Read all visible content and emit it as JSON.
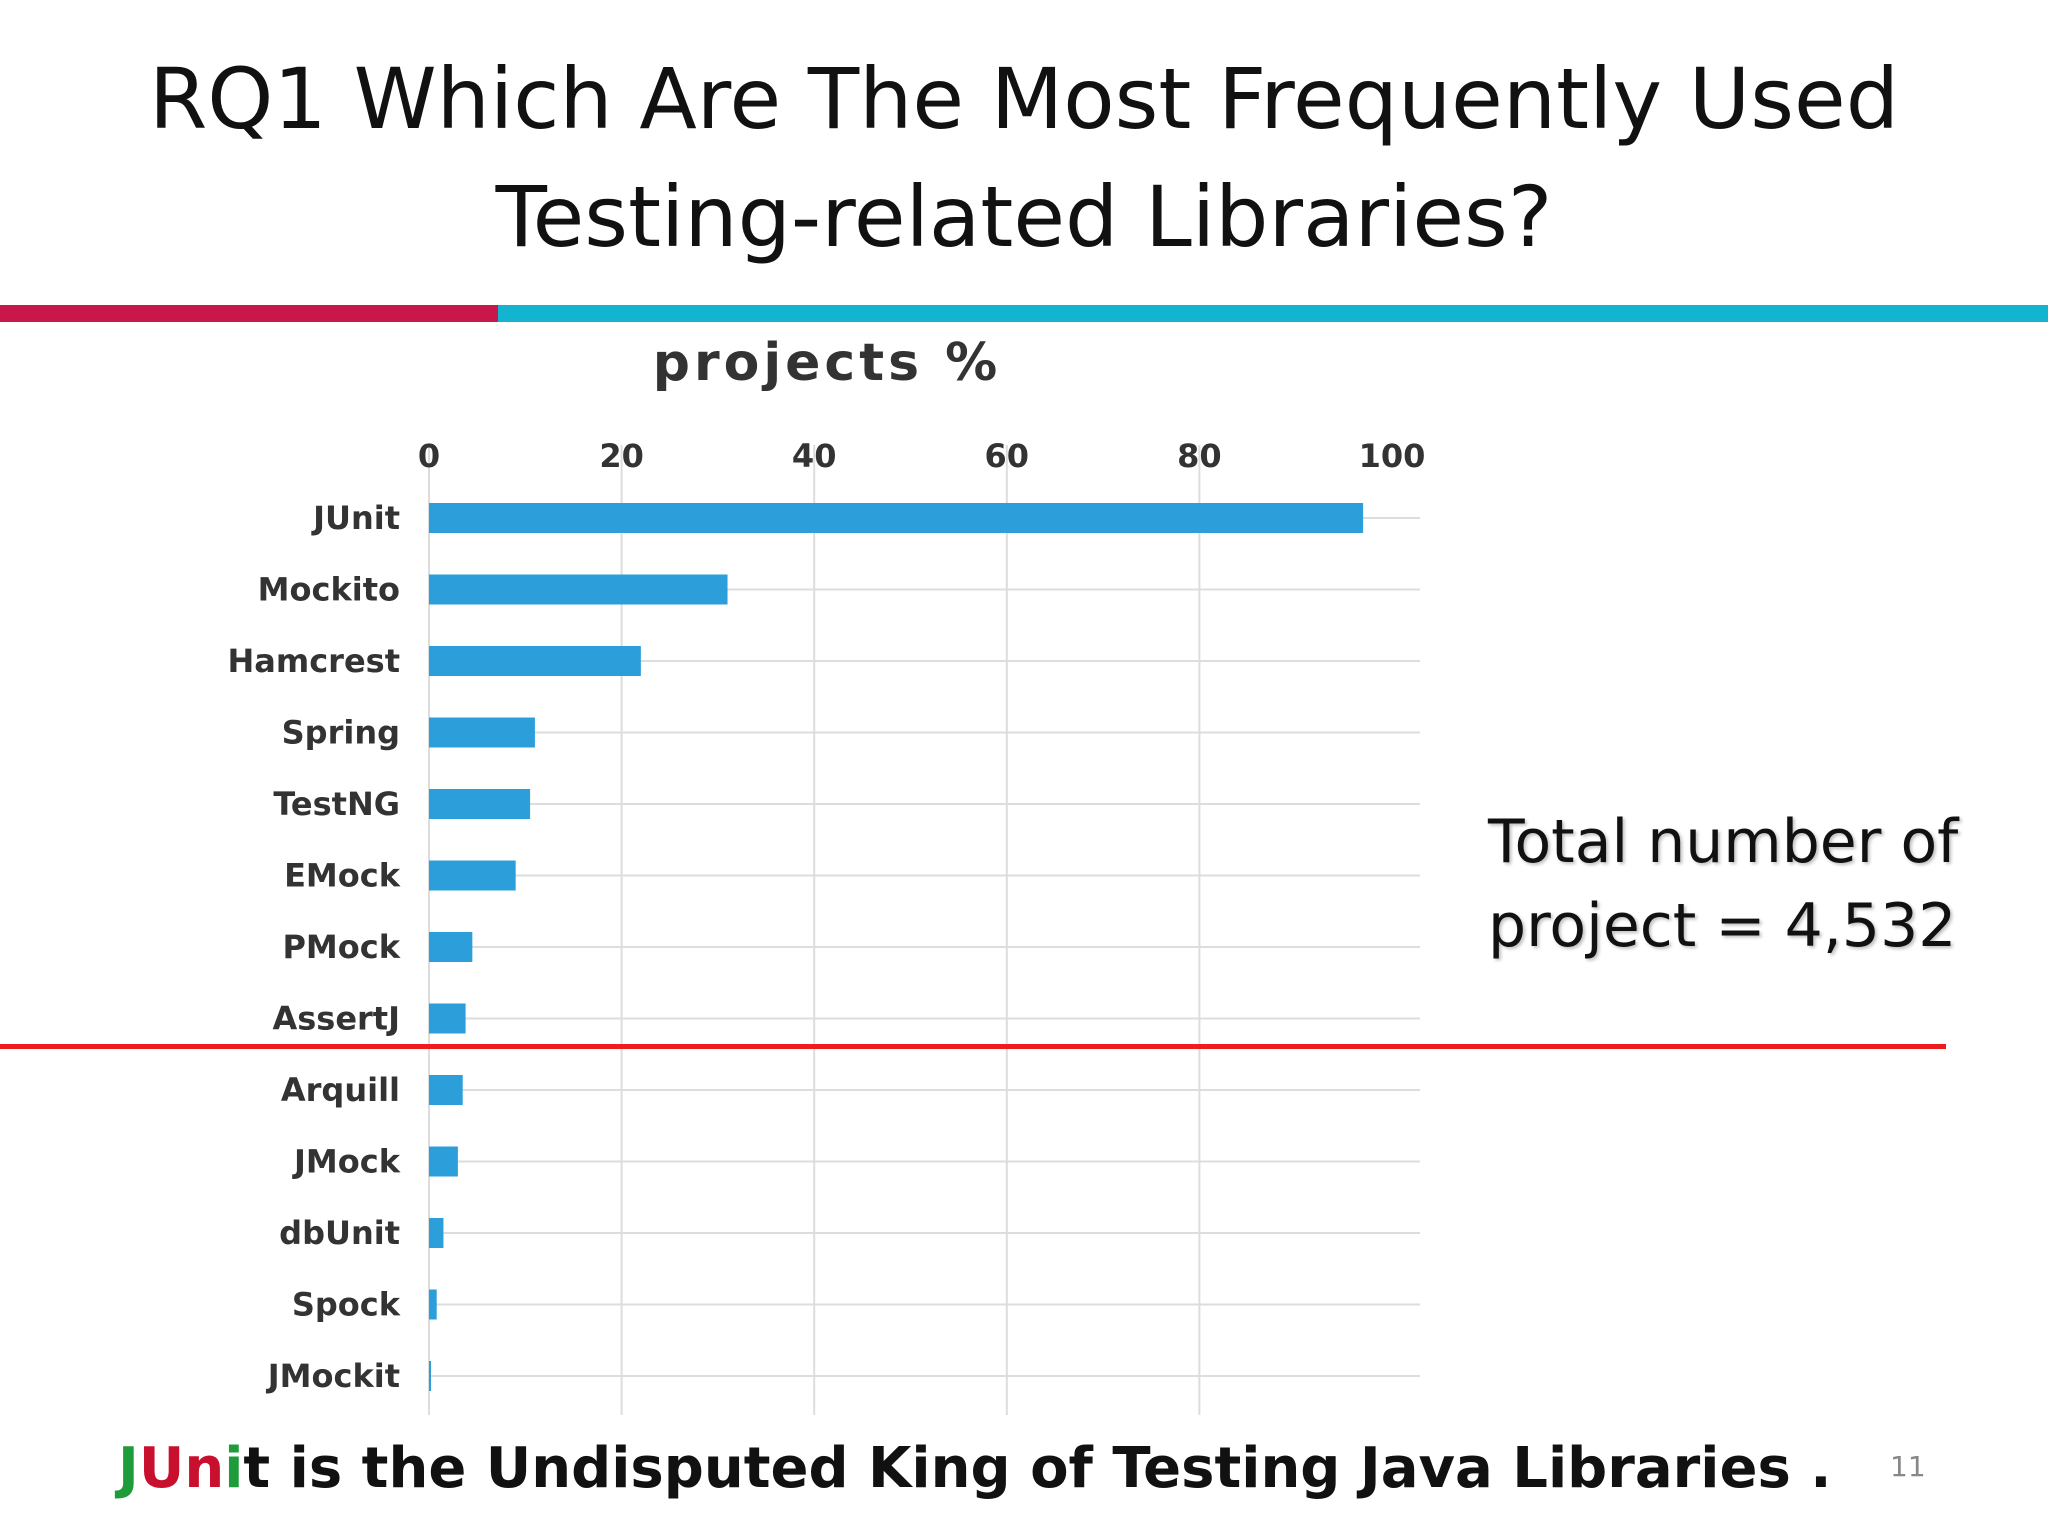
{
  "slide": {
    "title_line1": "RQ1 Which Are The Most Frequently Used",
    "title_line2": "Testing-related Libraries?",
    "annotation_line1": "Total number of",
    "annotation_line2": "project = 4,532",
    "footer": {
      "j": "J",
      "un": "Un",
      "i": "i",
      "rest": "t is the Undisputed King of Testing Java Libraries",
      "dot": " ."
    },
    "page_number": "11"
  },
  "colors": {
    "divider_left": "#c8174a",
    "divider_right": "#12b4cf",
    "bar": "#2c9fdb",
    "cutoff_line": "#ee1c1c",
    "footer_j": "#1e9b3a",
    "footer_un": "#c8102e",
    "footer_i": "#1e9b3a",
    "grid": "#dddddd",
    "text": "#333333"
  },
  "chart_data": {
    "type": "bar",
    "orientation": "horizontal",
    "title": "projects %",
    "xlabel": "",
    "ylabel": "",
    "xlim": [
      0,
      100
    ],
    "xticks": [
      0,
      20,
      40,
      60,
      80,
      100
    ],
    "axis_position": "top",
    "grid": true,
    "categories": [
      "JUnit",
      "Mockito",
      "Hamcrest",
      "Spring",
      "TestNG",
      "EMock",
      "PMock",
      "AssertJ",
      "Arquill",
      "JMock",
      "dbUnit",
      "Spock",
      "JMockit"
    ],
    "values": [
      97,
      31,
      22,
      11,
      10.5,
      9,
      4.5,
      3.8,
      3.5,
      3,
      1.5,
      0.8,
      0.2
    ]
  }
}
